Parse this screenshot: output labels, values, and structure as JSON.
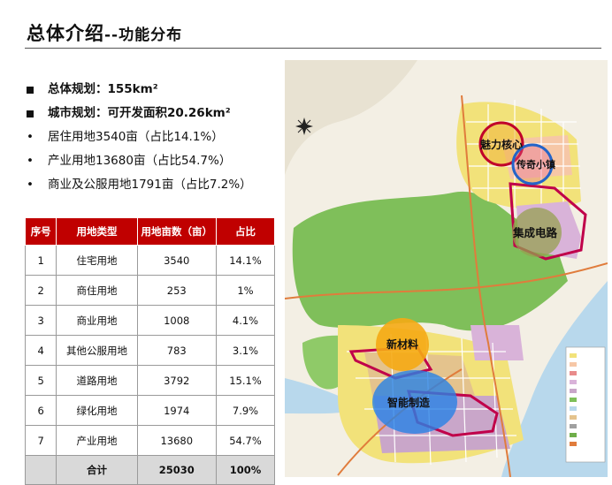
{
  "header": {
    "title_main": "总体介绍",
    "title_sub": "--功能分布"
  },
  "bullets": [
    {
      "marker": "■",
      "text": "总体规划：155km²",
      "bold": true
    },
    {
      "marker": "■",
      "text": "城市规划：可开发面积20.26km²",
      "bold": true
    },
    {
      "marker": "•",
      "text": "居住用地3540亩（占比14.1%）",
      "bold": false
    },
    {
      "marker": "•",
      "text": "产业用地13680亩（占比54.7%）",
      "bold": false
    },
    {
      "marker": "•",
      "text": "商业及公服用地1791亩（占比7.2%）",
      "bold": false
    }
  ],
  "table": {
    "headers": [
      "序号",
      "用地类型",
      "用地亩数（亩）",
      "占比"
    ],
    "rows": [
      [
        "1",
        "住宅用地",
        "3540",
        "14.1%"
      ],
      [
        "2",
        "商住用地",
        "253",
        "1%"
      ],
      [
        "3",
        "商业用地",
        "1008",
        "4.1%"
      ],
      [
        "4",
        "其他公服用地",
        "783",
        "3.1%"
      ],
      [
        "5",
        "道路用地",
        "3792",
        "15.1%"
      ],
      [
        "6",
        "绿化用地",
        "1974",
        "7.9%"
      ],
      [
        "7",
        "产业用地",
        "13680",
        "54.7%"
      ]
    ],
    "total": [
      "",
      "合计",
      "25030",
      "100%"
    ]
  },
  "map": {
    "zones": {
      "core": "魅力核心",
      "town": "传奇小镇",
      "ic": "集成电路",
      "material": "新材料",
      "smart": "智能制造"
    },
    "colors": {
      "river": "#b8d8ec",
      "green": "#7fbf5a",
      "residential": "#f2e27a",
      "industrial": "#c9a6c9",
      "accent": "#c0004a"
    }
  }
}
